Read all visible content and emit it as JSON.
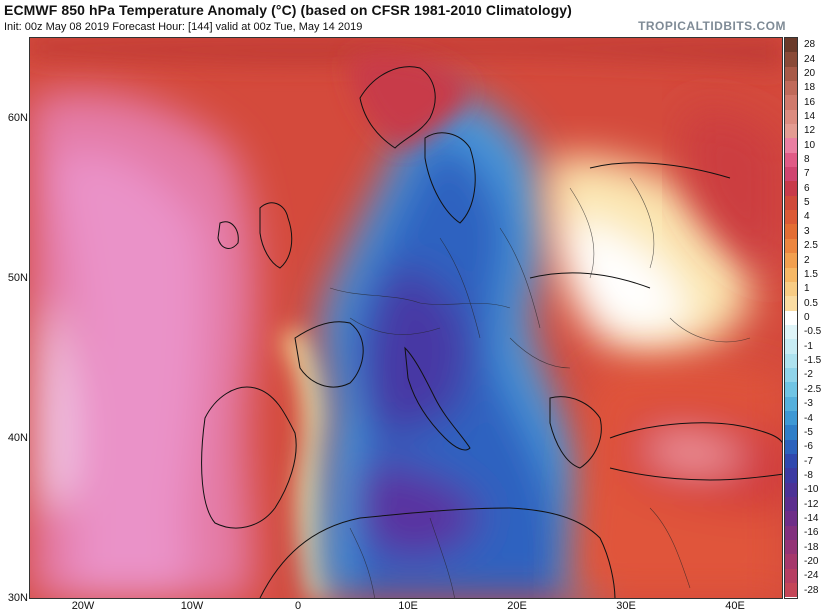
{
  "header": {
    "title": "ECMWF 850 hPa Temperature Anomaly (°C) (based on CFSR 1981-2010 Climatology)",
    "subtitle": "Init: 00z May 08 2019   Forecast Hour: [144]   valid at 00z Tue, May 14 2019",
    "brand": "TROPICALTIDBITS.COM"
  },
  "axes": {
    "latitude_labels": [
      "60N",
      "50N",
      "40N",
      "30N"
    ],
    "longitude_labels": [
      "20W",
      "10W",
      "0",
      "10E",
      "20E",
      "30E",
      "40E"
    ]
  },
  "colorbar": {
    "labels": [
      "28",
      "24",
      "20",
      "18",
      "16",
      "14",
      "12",
      "10",
      "8",
      "7",
      "6",
      "5",
      "4",
      "3",
      "2.5",
      "2",
      "1.5",
      "1",
      "0.5",
      "0",
      "-0.5",
      "-1",
      "-1.5",
      "-2",
      "-2.5",
      "-3",
      "-4",
      "-5",
      "-6",
      "-7",
      "-8",
      "-10",
      "-12",
      "-14",
      "-16",
      "-18",
      "-20",
      "-24",
      "-28"
    ],
    "colors": [
      "#6b3a2a",
      "#8a4a38",
      "#a85a48",
      "#c06a5a",
      "#d07a6c",
      "#dc8c80",
      "#e49c92",
      "#ea7fa2",
      "#e05a86",
      "#d04470",
      "#c83a4a",
      "#d04a3a",
      "#dc5a36",
      "#e46e34",
      "#ec8640",
      "#f2a050",
      "#f6b866",
      "#f8cc84",
      "#fadca2",
      "#ffffff",
      "#dff4f8",
      "#c8ecf4",
      "#aee2ef",
      "#90d4ea",
      "#70c4e4",
      "#56b0dc",
      "#3e98d4",
      "#2f7ec8",
      "#2c62bc",
      "#3048ae",
      "#3c3aa2",
      "#4c3296",
      "#5c2e8e",
      "#6e2e88",
      "#82307e",
      "#943476",
      "#a6386c",
      "#b63e62",
      "#c44658"
    ]
  },
  "map": {
    "region": "Europe / North Africa / Middle East",
    "variable": "850 hPa Temperature Anomaly",
    "units": "°C"
  }
}
